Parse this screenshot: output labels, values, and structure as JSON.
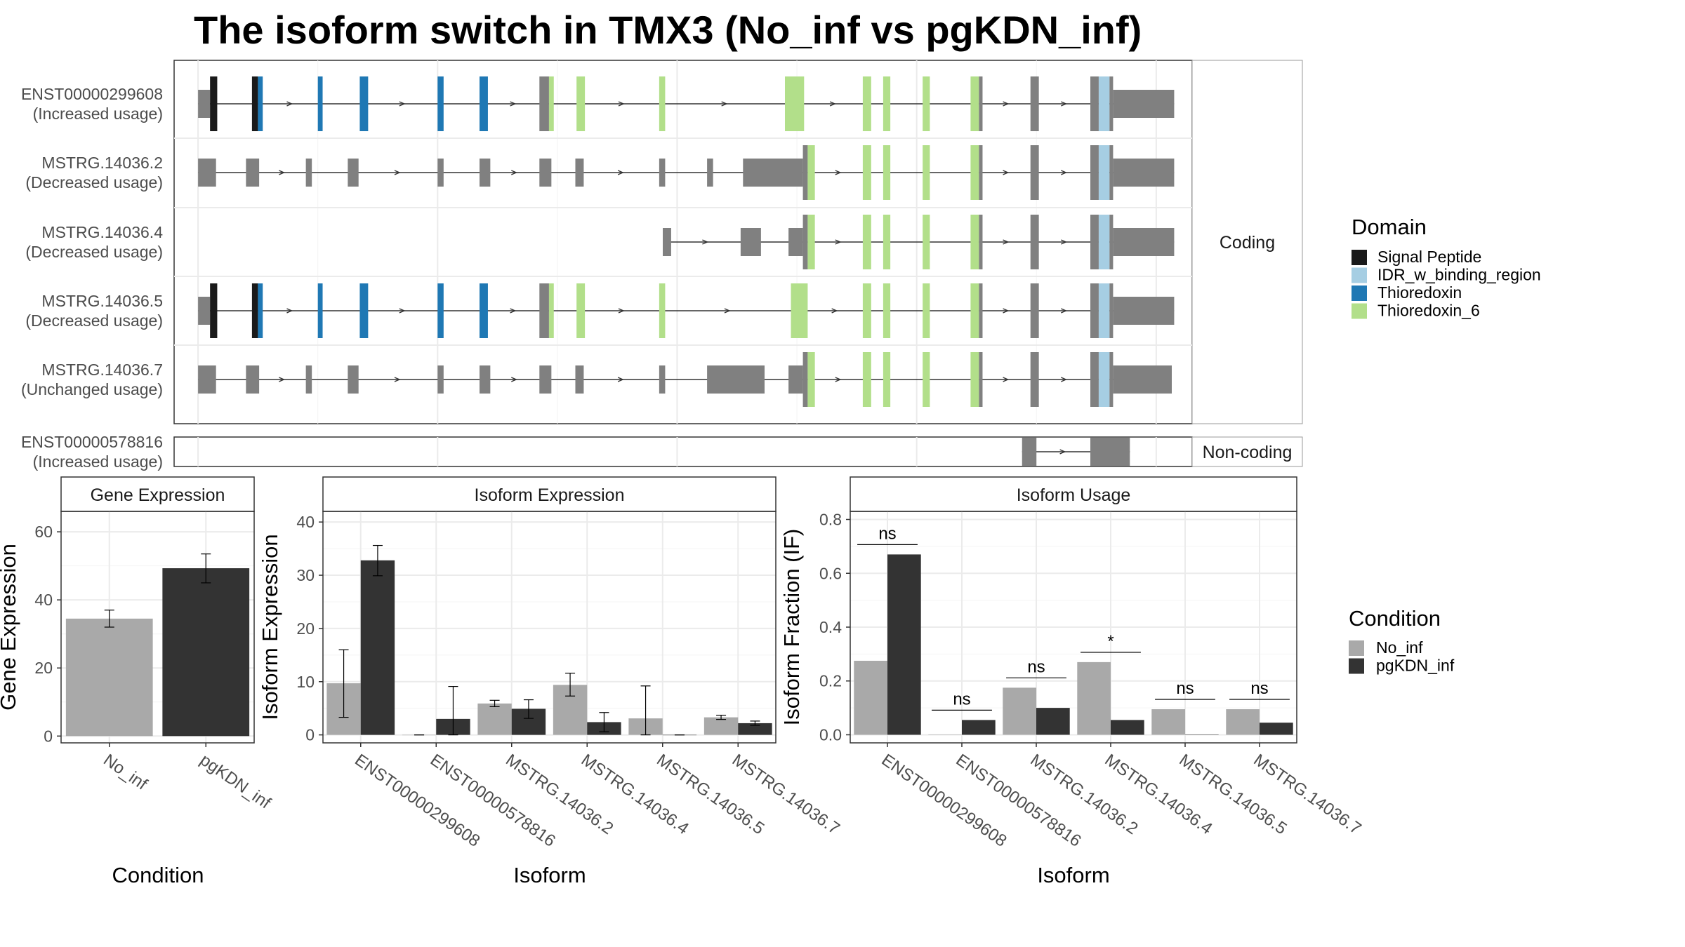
{
  "title": "The isoform switch in TMX3 (No_inf vs pgKDN_inf)",
  "colors": {
    "exon": "#808080",
    "No_inf": "#a9a9a9",
    "pgKDN_inf": "#333333",
    "Signal Peptide": "#1a1a1a",
    "IDR_w_binding_region": "#a6cee3",
    "Thioredoxin": "#1f78b4",
    "Thioredoxin_6": "#b2df8a"
  },
  "structure": {
    "coding_label": "Coding",
    "noncoding_label": "Non-coding",
    "isoforms": [
      {
        "id": "ENST00000299608",
        "usage": "(Increased usage)",
        "coding": true,
        "exons": [
          [
            0,
            1,
            "utr"
          ],
          [
            1,
            1.6,
            "Signal Peptide"
          ],
          [
            4.5,
            5.0,
            "Signal Peptide"
          ],
          [
            5.0,
            5.4,
            "Thioredoxin"
          ],
          [
            10.0,
            10.4,
            "Thioredoxin"
          ],
          [
            13.5,
            14.2,
            "Thioredoxin"
          ],
          [
            20.0,
            20.5,
            "Thioredoxin"
          ],
          [
            23.5,
            24.2,
            "Thioredoxin"
          ],
          [
            28.5,
            29.3,
            "exon"
          ],
          [
            29.3,
            29.7,
            "Thioredoxin_6"
          ],
          [
            31.6,
            32.3,
            "Thioredoxin_6"
          ],
          [
            38.5,
            39.0,
            "Thioredoxin_6"
          ],
          [
            49.0,
            50.6,
            "Thioredoxin_6"
          ],
          [
            55.5,
            56.2,
            "Thioredoxin_6"
          ],
          [
            57.2,
            57.8,
            "Thioredoxin_6"
          ],
          [
            60.5,
            61.1,
            "Thioredoxin_6"
          ],
          [
            64.5,
            65.2,
            "Thioredoxin_6"
          ],
          [
            65.2,
            65.5,
            "exon"
          ],
          [
            69.5,
            70.2,
            "exon"
          ],
          [
            74.5,
            75.2,
            "exon"
          ],
          [
            75.2,
            76.1,
            "IDR_w_binding_region"
          ],
          [
            76.1,
            76.4,
            "exon"
          ],
          [
            76.4,
            81.5,
            "utr"
          ]
        ]
      },
      {
        "id": "MSTRG.14036.2",
        "usage": "(Decreased usage)",
        "coding": true,
        "exons": [
          [
            0,
            1.5,
            "utr"
          ],
          [
            4.0,
            5.1,
            "utr"
          ],
          [
            9.0,
            9.5,
            "utr"
          ],
          [
            12.5,
            13.4,
            "utr"
          ],
          [
            20.0,
            20.5,
            "utr"
          ],
          [
            23.5,
            24.4,
            "utr"
          ],
          [
            28.5,
            29.5,
            "utr"
          ],
          [
            31.5,
            32.2,
            "utr"
          ],
          [
            38.5,
            39.0,
            "utr"
          ],
          [
            42.5,
            43.0,
            "utr"
          ],
          [
            45.5,
            50.5,
            "utr"
          ],
          [
            50.5,
            50.9,
            "exon"
          ],
          [
            50.9,
            51.5,
            "Thioredoxin_6"
          ],
          [
            55.5,
            56.2,
            "Thioredoxin_6"
          ],
          [
            57.2,
            57.8,
            "Thioredoxin_6"
          ],
          [
            60.5,
            61.1,
            "Thioredoxin_6"
          ],
          [
            64.5,
            65.2,
            "Thioredoxin_6"
          ],
          [
            65.2,
            65.5,
            "exon"
          ],
          [
            69.5,
            70.2,
            "exon"
          ],
          [
            74.5,
            75.2,
            "exon"
          ],
          [
            75.2,
            76.1,
            "IDR_w_binding_region"
          ],
          [
            76.1,
            76.4,
            "exon"
          ],
          [
            76.4,
            81.5,
            "utr"
          ]
        ]
      },
      {
        "id": "MSTRG.14036.4",
        "usage": "(Decreased usage)",
        "coding": true,
        "exons": [
          [
            38.8,
            39.5,
            "utr"
          ],
          [
            45.3,
            47.0,
            "utr"
          ],
          [
            49.3,
            50.5,
            "utr"
          ],
          [
            50.5,
            50.9,
            "exon"
          ],
          [
            50.9,
            51.5,
            "Thioredoxin_6"
          ],
          [
            55.5,
            56.2,
            "Thioredoxin_6"
          ],
          [
            57.2,
            57.8,
            "Thioredoxin_6"
          ],
          [
            60.5,
            61.1,
            "Thioredoxin_6"
          ],
          [
            64.5,
            65.2,
            "Thioredoxin_6"
          ],
          [
            65.2,
            65.5,
            "exon"
          ],
          [
            69.5,
            70.2,
            "exon"
          ],
          [
            74.5,
            75.2,
            "exon"
          ],
          [
            75.2,
            76.1,
            "IDR_w_binding_region"
          ],
          [
            76.1,
            76.4,
            "exon"
          ],
          [
            76.4,
            81.5,
            "utr"
          ]
        ]
      },
      {
        "id": "MSTRG.14036.5",
        "usage": "(Decreased usage)",
        "coding": true,
        "exons": [
          [
            0,
            1,
            "utr"
          ],
          [
            1,
            1.6,
            "Signal Peptide"
          ],
          [
            4.5,
            5.0,
            "Signal Peptide"
          ],
          [
            5.0,
            5.4,
            "Thioredoxin"
          ],
          [
            10.0,
            10.4,
            "Thioredoxin"
          ],
          [
            13.5,
            14.2,
            "Thioredoxin"
          ],
          [
            20.0,
            20.5,
            "Thioredoxin"
          ],
          [
            23.5,
            24.2,
            "Thioredoxin"
          ],
          [
            28.5,
            29.3,
            "exon"
          ],
          [
            29.3,
            29.7,
            "Thioredoxin_6"
          ],
          [
            31.6,
            32.3,
            "Thioredoxin_6"
          ],
          [
            38.5,
            39.0,
            "Thioredoxin_6"
          ],
          [
            49.5,
            50.9,
            "Thioredoxin_6"
          ],
          [
            55.5,
            56.2,
            "Thioredoxin_6"
          ],
          [
            57.2,
            57.8,
            "Thioredoxin_6"
          ],
          [
            60.5,
            61.1,
            "Thioredoxin_6"
          ],
          [
            64.5,
            65.2,
            "Thioredoxin_6"
          ],
          [
            65.2,
            65.5,
            "exon"
          ],
          [
            69.5,
            70.2,
            "exon"
          ],
          [
            74.5,
            75.2,
            "exon"
          ],
          [
            75.2,
            76.1,
            "IDR_w_binding_region"
          ],
          [
            76.1,
            76.4,
            "exon"
          ],
          [
            76.4,
            81.5,
            "utr"
          ]
        ]
      },
      {
        "id": "MSTRG.14036.7",
        "usage": "(Unchanged usage)",
        "coding": true,
        "exons": [
          [
            0,
            1.5,
            "utr"
          ],
          [
            4.0,
            5.1,
            "utr"
          ],
          [
            9.0,
            9.5,
            "utr"
          ],
          [
            12.5,
            13.4,
            "utr"
          ],
          [
            20.0,
            20.5,
            "utr"
          ],
          [
            23.5,
            24.4,
            "utr"
          ],
          [
            28.5,
            29.5,
            "utr"
          ],
          [
            31.5,
            32.2,
            "utr"
          ],
          [
            38.5,
            39.0,
            "utr"
          ],
          [
            42.5,
            47.3,
            "utr"
          ],
          [
            49.3,
            50.5,
            "utr"
          ],
          [
            50.5,
            50.9,
            "exon"
          ],
          [
            50.9,
            51.5,
            "Thioredoxin_6"
          ],
          [
            55.5,
            56.2,
            "Thioredoxin_6"
          ],
          [
            57.2,
            57.8,
            "Thioredoxin_6"
          ],
          [
            60.5,
            61.1,
            "Thioredoxin_6"
          ],
          [
            64.5,
            65.2,
            "Thioredoxin_6"
          ],
          [
            65.2,
            65.5,
            "exon"
          ],
          [
            69.5,
            70.2,
            "exon"
          ],
          [
            74.5,
            75.2,
            "exon"
          ],
          [
            75.2,
            76.1,
            "IDR_w_binding_region"
          ],
          [
            76.1,
            76.4,
            "exon"
          ],
          [
            76.4,
            81.3,
            "utr"
          ]
        ]
      },
      {
        "id": "ENST00000578816",
        "usage": "(Increased usage)",
        "coding": false,
        "exons": [
          [
            68.8,
            70.0,
            "utr"
          ],
          [
            74.5,
            77.8,
            "utr"
          ]
        ]
      }
    ]
  },
  "legend_domain": {
    "title": "Domain",
    "items": [
      "Signal Peptide",
      "IDR_w_binding_region",
      "Thioredoxin",
      "Thioredoxin_6"
    ]
  },
  "legend_condition": {
    "title": "Condition",
    "items": [
      "No_inf",
      "pgKDN_inf"
    ]
  },
  "chart_data": [
    {
      "type": "bar",
      "title": "Gene Expression",
      "xlabel": "Condition",
      "ylabel": "Gene Expression",
      "categories": [
        "No_inf",
        "pgKDN_inf"
      ],
      "values": [
        34.5,
        49.3
      ],
      "err_low": [
        32.0,
        45.0
      ],
      "err_high": [
        37.0,
        53.5
      ],
      "ylim": [
        -2,
        66
      ],
      "yticks": [
        0,
        20,
        40,
        60
      ]
    },
    {
      "type": "bar",
      "title": "Isoform Expression",
      "xlabel": "Isoform",
      "ylabel": "Isoform Expression",
      "categories": [
        "ENST00000299608",
        "ENST00000578816",
        "MSTRG.14036.2",
        "MSTRG.14036.4",
        "MSTRG.14036.5",
        "MSTRG.14036.7"
      ],
      "series": [
        {
          "name": "No_inf",
          "values": [
            9.7,
            0,
            5.9,
            9.4,
            3.1,
            3.3
          ],
          "err_low": [
            3.3,
            0,
            5.3,
            7.3,
            0,
            2.9
          ],
          "err_high": [
            16.0,
            0,
            6.5,
            11.6,
            9.2,
            3.7
          ]
        },
        {
          "name": "pgKDN_inf",
          "values": [
            32.8,
            3.0,
            4.9,
            2.4,
            0,
            2.2
          ],
          "err_low": [
            29.9,
            0,
            3.1,
            0.6,
            0,
            1.8
          ],
          "err_high": [
            35.6,
            9.1,
            6.6,
            4.2,
            0,
            2.6
          ]
        }
      ],
      "ylim": [
        -1.5,
        42
      ],
      "yticks": [
        0,
        10,
        20,
        30,
        40
      ]
    },
    {
      "type": "bar",
      "title": "Isoform Usage",
      "xlabel": "Isoform",
      "ylabel": "Isoform Fraction (IF)",
      "categories": [
        "ENST00000299608",
        "ENST00000578816",
        "MSTRG.14036.2",
        "MSTRG.14036.4",
        "MSTRG.14036.5",
        "MSTRG.14036.7"
      ],
      "series": [
        {
          "name": "No_inf",
          "values": [
            0.275,
            0,
            0.175,
            0.27,
            0.095,
            0.095
          ]
        },
        {
          "name": "pgKDN_inf",
          "values": [
            0.67,
            0.055,
            0.1,
            0.055,
            0,
            0.045
          ]
        }
      ],
      "significance": [
        "ns",
        "ns",
        "ns",
        "*",
        "ns",
        "ns"
      ],
      "ylim": [
        -0.03,
        0.83
      ],
      "yticks": [
        0.0,
        0.2,
        0.4,
        0.6,
        0.8
      ],
      "ytick_labels": [
        "0.0",
        "0.2",
        "0.4",
        "0.6",
        "0.8"
      ]
    }
  ]
}
